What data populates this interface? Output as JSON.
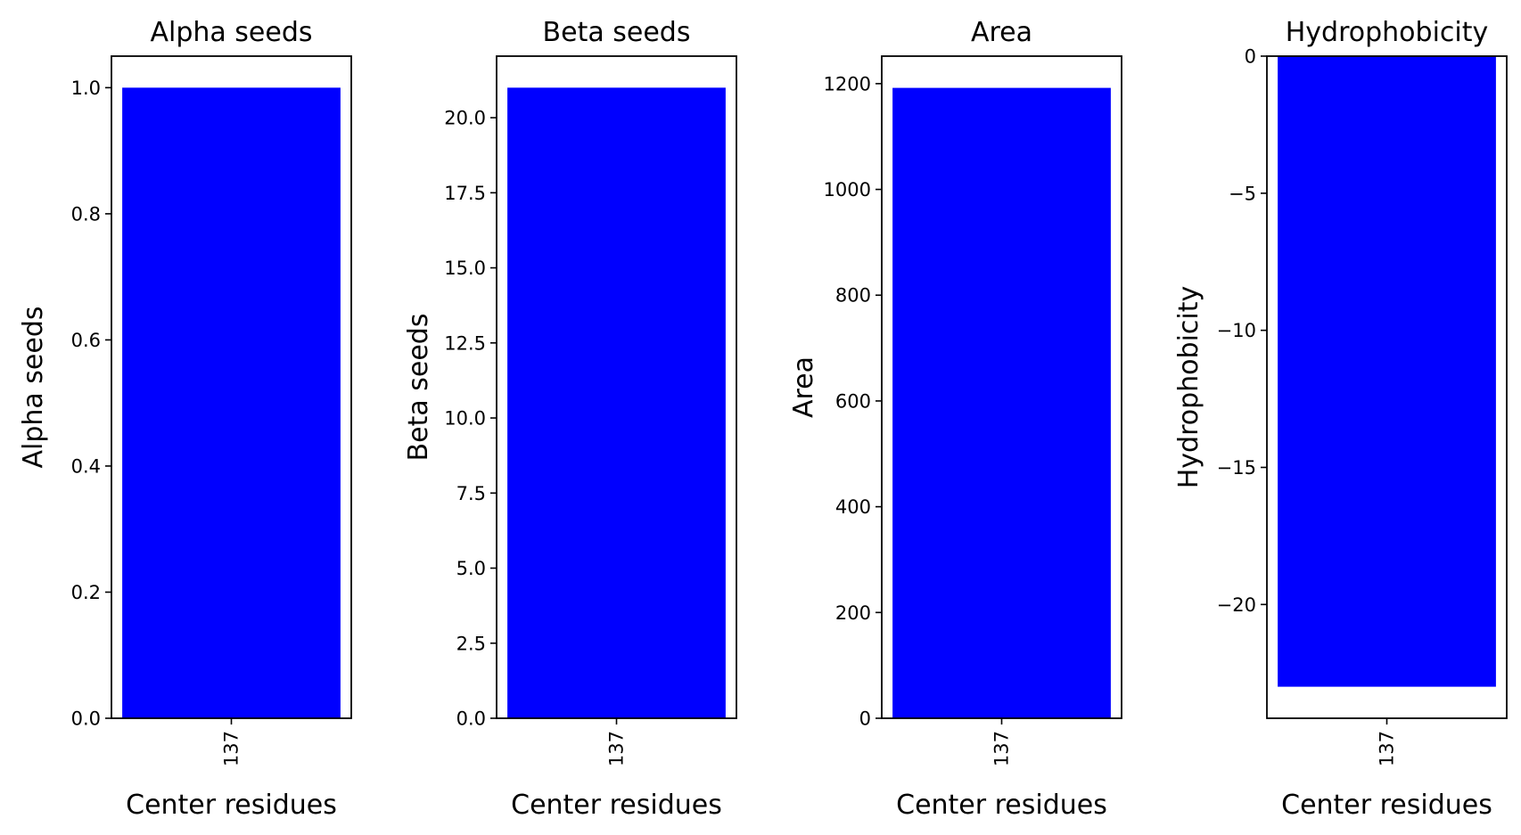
{
  "chart_data": [
    {
      "type": "bar",
      "title": "Alpha seeds",
      "xlabel": "Center residues",
      "ylabel": "Alpha seeds",
      "categories": [
        "137"
      ],
      "values": [
        1
      ],
      "ylim": [
        0,
        1.05
      ],
      "yticks": [
        "0.0",
        "0.2",
        "0.4",
        "0.6",
        "0.8",
        "1.0"
      ],
      "color": "#0000ff",
      "grid": false
    },
    {
      "type": "bar",
      "title": "Beta seeds",
      "xlabel": "Center residues",
      "ylabel": "Beta seeds",
      "categories": [
        "137"
      ],
      "values": [
        21
      ],
      "ylim": [
        0,
        22.05
      ],
      "yticks": [
        "0.0",
        "2.5",
        "5.0",
        "7.5",
        "10.0",
        "12.5",
        "15.0",
        "17.5",
        "20.0"
      ],
      "color": "#0000ff",
      "grid": false
    },
    {
      "type": "bar",
      "title": "Area",
      "xlabel": "Center residues",
      "ylabel": "Area",
      "categories": [
        "137"
      ],
      "values": [
        1192
      ],
      "ylim": [
        0,
        1252
      ],
      "yticks": [
        "0",
        "200",
        "400",
        "600",
        "800",
        "1000",
        "1200"
      ],
      "color": "#0000ff",
      "grid": false
    },
    {
      "type": "bar",
      "title": "Hydrophobicity",
      "xlabel": "Center residues",
      "ylabel": "Hydrophobicity",
      "categories": [
        "137"
      ],
      "values": [
        -23
      ],
      "ylim": [
        -24.15,
        0
      ],
      "yticks": [
        "0",
        "−5",
        "−10",
        "−15",
        "−20"
      ],
      "color": "#0000ff",
      "grid": false
    }
  ]
}
